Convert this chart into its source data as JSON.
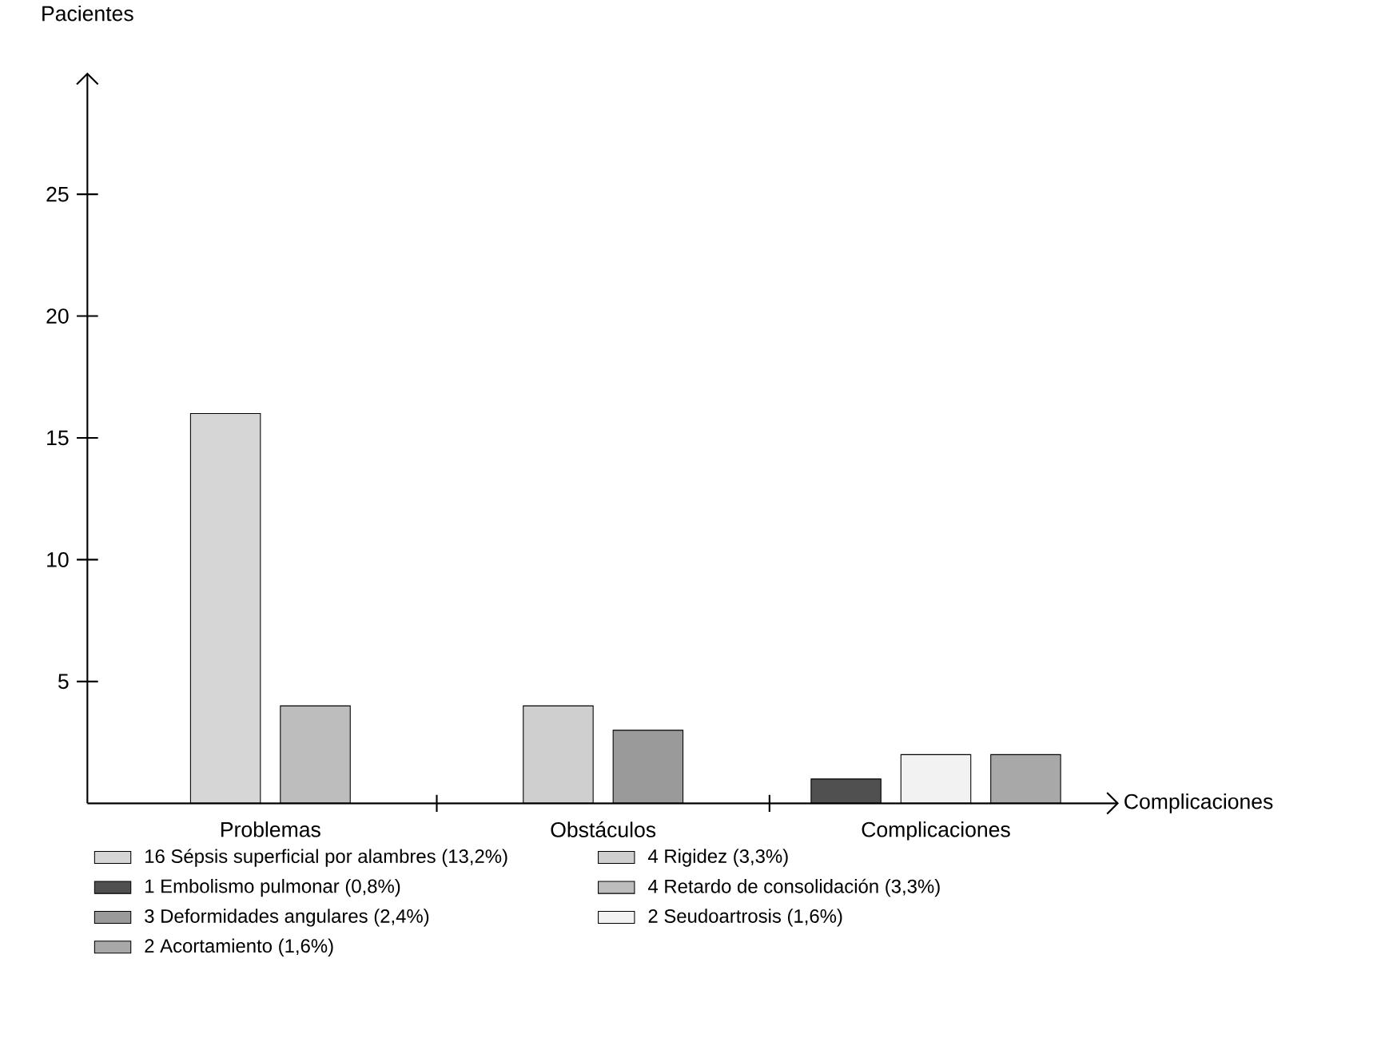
{
  "chart_data": {
    "type": "bar",
    "xlabel": "Complicaciones",
    "ylabel": "Pacientes",
    "categories": [
      "Problemas",
      "Obstáculos",
      "Complicaciones"
    ],
    "ylim": [
      0,
      30
    ],
    "yticks": [
      5,
      10,
      15,
      20,
      25
    ],
    "grid": false,
    "legend": "bottom",
    "series": [
      {
        "name": "16 Sépsis superficial por alambres (13,2%)",
        "color": "#d6d6d6",
        "values": [
          16,
          null,
          null
        ]
      },
      {
        "name": "4 Rigidez (3,3%)",
        "color": "#cfcfcf",
        "values": [
          null,
          4,
          null
        ]
      },
      {
        "name": "1 Embolismo pulmonar (0,8%)",
        "color": "#505050",
        "values": [
          null,
          null,
          1
        ]
      },
      {
        "name": "4 Retardo de consolidación (3,3%)",
        "color": "#bdbdbd",
        "values": [
          4,
          null,
          null
        ]
      },
      {
        "name": "3 Deformidades angulares (2,4%)",
        "color": "#9a9a9a",
        "values": [
          null,
          3,
          null
        ]
      },
      {
        "name": "2 Seudoartrosis (1,6%)",
        "color": "#f2f2f2",
        "values": [
          null,
          null,
          2
        ]
      },
      {
        "name": "2 Acortamiento (1,6%)",
        "color": "#a8a8a8",
        "values": [
          null,
          null,
          2
        ]
      }
    ]
  }
}
